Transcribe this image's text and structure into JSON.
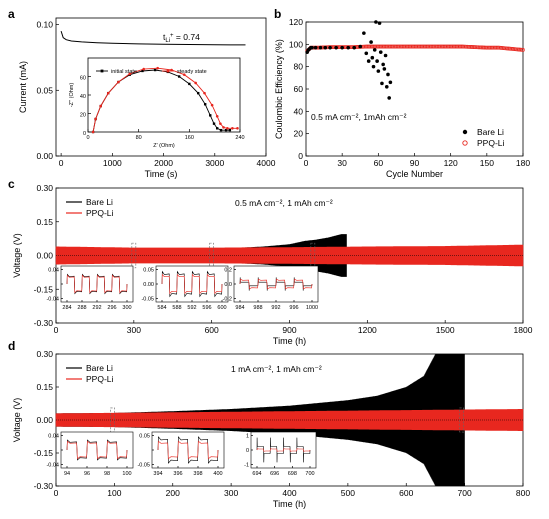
{
  "chart_data": [
    {
      "panel": "a",
      "type": "line",
      "xlabel": "Time (s)",
      "ylabel": "Current (mA)",
      "xlim": [
        -100,
        4000
      ],
      "ylim": [
        0,
        0.105
      ],
      "xticks": [
        0,
        1000,
        2000,
        3000,
        4000
      ],
      "yticks": [
        0.0,
        0.05,
        0.1
      ],
      "ytick_labels": [
        "0.00",
        "0.05",
        "0.10"
      ],
      "annotation_prefix": "t",
      "annotation_sub": "Li",
      "annotation_sup": "+",
      "annotation_value": "= 0.74",
      "series": [
        {
          "x": [
            0,
            40,
            100,
            200,
            400,
            700,
            1000,
            1500,
            2000,
            2500,
            3000,
            3300,
            3600
          ],
          "y": [
            0.095,
            0.09,
            0.0885,
            0.0875,
            0.0868,
            0.0862,
            0.0858,
            0.0853,
            0.085,
            0.0848,
            0.0846,
            0.0845,
            0.0845
          ],
          "color": "#000000"
        }
      ],
      "inset": {
        "xlabel": "Z' (Ohm)",
        "ylabel": "-Z'' (Ohm)",
        "xlim": [
          0,
          240
        ],
        "ylim": [
          0,
          80
        ],
        "xticks": [
          0,
          80,
          160,
          240
        ],
        "yticks": [
          0,
          20,
          40,
          60
        ],
        "series": [
          {
            "name": "initial state",
            "color": "#000000",
            "marker": "square",
            "x": [
              8,
              12,
              20,
              32,
              48,
              66,
              86,
              106,
              126,
              144,
              160,
              174,
              185,
              193,
              199,
              204,
              210,
              218,
              224
            ],
            "y": [
              0,
              14,
              28,
              42,
              54,
              62,
              66,
              67,
              65,
              60,
              52,
              42,
              30,
              18,
              9,
              4,
              2,
              2,
              2
            ]
          },
          {
            "name": "steady state",
            "color": "#e8271f",
            "marker": "circle",
            "x": [
              8,
              12,
              20,
              32,
              48,
              66,
              88,
              110,
              132,
              152,
              170,
              184,
              196,
              204,
              209,
              214,
              220,
              228,
              236
            ],
            "y": [
              0,
              14,
              28,
              42,
              54,
              63,
              68,
              69,
              67,
              62,
              53,
              42,
              29,
              17,
              9,
              5,
              4,
              4,
              4
            ]
          }
        ]
      }
    },
    {
      "panel": "b",
      "type": "scatter",
      "xlabel": "Cycle Number",
      "ylabel": "Coulombic Efficiency (%)",
      "xlim": [
        0,
        180
      ],
      "ylim": [
        0,
        120
      ],
      "xticks": [
        0,
        30,
        60,
        90,
        120,
        150,
        180
      ],
      "yticks": [
        0,
        20,
        40,
        60,
        80,
        100,
        120
      ],
      "annotation": "0.5 mA cm⁻², 1mAh cm⁻²",
      "series": [
        {
          "name": "Bare Li",
          "color": "#000000",
          "x": [
            1,
            2,
            3,
            4,
            5,
            8,
            12,
            16,
            20,
            25,
            30,
            35,
            40,
            45,
            48,
            50,
            52,
            54,
            55,
            56,
            57,
            58,
            59,
            60,
            61,
            62,
            63,
            64,
            65,
            66,
            67,
            68,
            69,
            70
          ],
          "y": [
            93,
            95,
            96,
            97,
            97,
            97,
            97,
            97,
            97,
            97,
            97,
            97,
            97,
            98,
            110,
            92,
            85,
            102,
            88,
            80,
            95,
            120,
            85,
            76,
            119,
            93,
            65,
            82,
            78,
            90,
            62,
            73,
            52,
            66
          ]
        },
        {
          "name": "PPQ-Li",
          "color": "#e8271f",
          "x": [
            1,
            2,
            3,
            4,
            5,
            10,
            20,
            30,
            40,
            50,
            60,
            70,
            80,
            90,
            100,
            110,
            120,
            130,
            140,
            150,
            160,
            170,
            175,
            180
          ],
          "y": [
            94,
            95,
            96,
            97,
            97,
            97,
            97.5,
            97.5,
            97.5,
            98,
            98,
            98,
            98,
            98,
            98,
            98,
            98,
            98,
            97.5,
            97,
            97,
            96,
            95.5,
            95
          ]
        }
      ]
    },
    {
      "panel": "c",
      "type": "line",
      "xlabel": "Time (h)",
      "ylabel": "Voltage (V)",
      "xlim": [
        0,
        1800
      ],
      "ylim": [
        -0.3,
        0.3
      ],
      "xticks": [
        0,
        300,
        600,
        900,
        1200,
        1500,
        1800
      ],
      "yticks": [
        -0.3,
        -0.15,
        0.0,
        0.15,
        0.3
      ],
      "ytick_labels": [
        "-0.30",
        "-0.15",
        "0.00",
        "0.15",
        "0.30"
      ],
      "annotation": "0.5 mA cm⁻², 1 mAh cm⁻²",
      "series": [
        {
          "name": "Bare Li",
          "color": "#000000",
          "t": [
            0,
            200,
            400,
            600,
            800,
            900,
            960,
            1000,
            1050,
            1100,
            1120
          ],
          "amplitude": [
            0.03,
            0.022,
            0.022,
            0.028,
            0.04,
            0.05,
            0.065,
            0.07,
            0.08,
            0.095,
            0.095
          ]
        },
        {
          "name": "PPQ-Li",
          "color": "#e8271f",
          "t": [
            0,
            300,
            600,
            900,
            1200,
            1500,
            1800
          ],
          "amplitude": [
            0.04,
            0.035,
            0.035,
            0.037,
            0.04,
            0.042,
            0.048
          ]
        }
      ],
      "insets": [
        {
          "xticks": [
            284,
            288,
            292,
            296,
            300
          ],
          "yticks": [
            -0.04,
            0.0,
            0.04
          ],
          "ytick_labels": [
            "-0.04",
            "",
            "0.04"
          ]
        },
        {
          "xticks": [
            584,
            588,
            592,
            596,
            600
          ],
          "yticks": [
            -0.05,
            0.0,
            0.05
          ],
          "ytick_labels": [
            "-0.05",
            "0.00",
            "0.05"
          ]
        },
        {
          "xticks": [
            984,
            988,
            992,
            996,
            1000
          ],
          "yticks": [
            -0.2,
            0.0,
            0.2
          ],
          "ytick_labels": [
            "-0.2",
            "0.0",
            "0.2"
          ]
        }
      ]
    },
    {
      "panel": "d",
      "type": "line",
      "xlabel": "Time (h)",
      "ylabel": "Voltage (V)",
      "xlim": [
        0,
        800
      ],
      "ylim": [
        -0.3,
        0.3
      ],
      "xticks": [
        0,
        100,
        200,
        300,
        400,
        500,
        600,
        700,
        800
      ],
      "yticks": [
        -0.3,
        -0.15,
        0.0,
        0.15,
        0.3
      ],
      "ytick_labels": [
        "-0.30",
        "-0.15",
        "0.00",
        "0.15",
        "0.30"
      ],
      "annotation": "1 mA cm⁻², 1 mAh cm⁻²",
      "series": [
        {
          "name": "Bare Li",
          "color": "#000000",
          "t": [
            0,
            100,
            200,
            300,
            400,
            500,
            550,
            600,
            630,
            650,
            670,
            700
          ],
          "amplitude": [
            0.03,
            0.032,
            0.04,
            0.05,
            0.065,
            0.09,
            0.11,
            0.15,
            0.2,
            0.3,
            0.3,
            0.3
          ]
        },
        {
          "name": "PPQ-Li",
          "color": "#e8271f",
          "t": [
            0,
            200,
            400,
            600,
            800
          ],
          "amplitude": [
            0.03,
            0.035,
            0.04,
            0.045,
            0.05
          ]
        }
      ],
      "insets": [
        {
          "xticks": [
            94,
            96,
            98,
            100
          ],
          "yticks": [
            -0.04,
            0.0,
            0.04
          ],
          "ytick_labels": [
            "-0.04",
            "",
            "0.04"
          ]
        },
        {
          "xticks": [
            394,
            396,
            398,
            400
          ],
          "yticks": [
            -0.05,
            0.0,
            0.05
          ],
          "ytick_labels": [
            "-0.05",
            "",
            "0.05"
          ]
        },
        {
          "xticks": [
            694,
            696,
            698,
            700
          ],
          "yticks": [
            -1,
            0,
            1
          ],
          "ytick_labels": [
            "-1",
            "0",
            "1"
          ]
        }
      ]
    }
  ]
}
